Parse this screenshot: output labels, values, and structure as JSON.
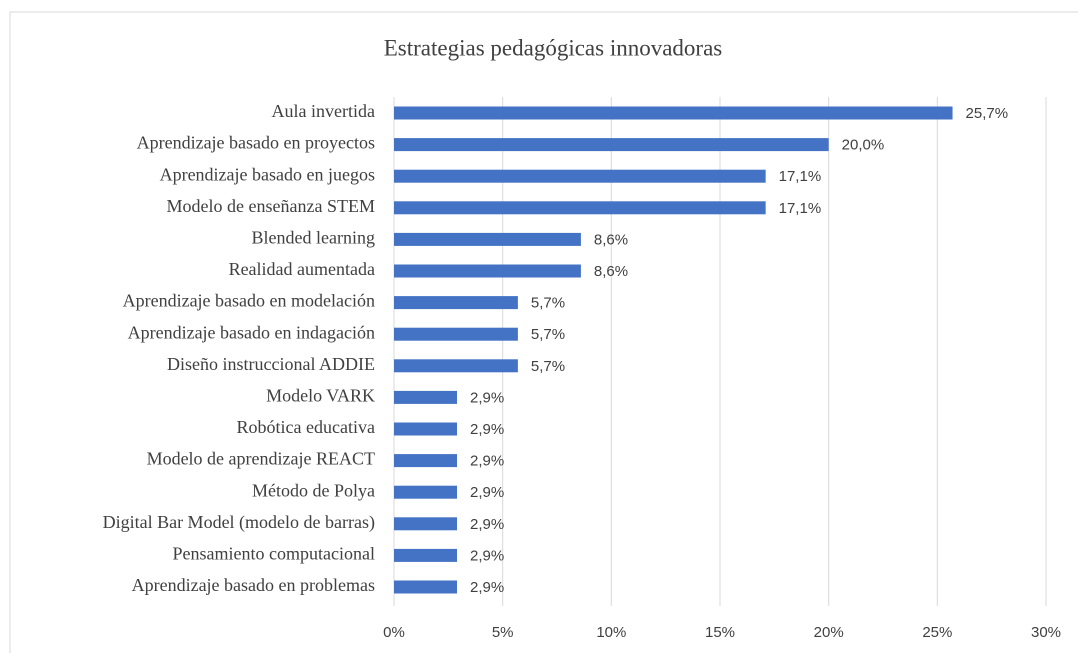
{
  "chart_data": {
    "type": "barh",
    "title": "Estrategias  pedagógicas  innovadoras",
    "categories": [
      "Aula invertida",
      "Aprendizaje basado en proyectos",
      "Aprendizaje basado en juegos",
      "Modelo de enseñanza STEM",
      "Blended learning",
      "Realidad aumentada",
      "Aprendizaje basado en modelación",
      "Aprendizaje basado en indagación",
      "Diseño instruccional ADDIE",
      "Modelo VARK",
      "Robótica educativa",
      "Modelo de aprendizaje REACT",
      "Método de Polya",
      "Digital Bar Model (modelo de barras)",
      "Pensamiento computacional",
      "Aprendizaje basado en problemas"
    ],
    "values": [
      25.7,
      20.0,
      17.1,
      17.1,
      8.6,
      8.6,
      5.7,
      5.7,
      5.7,
      2.9,
      2.9,
      2.9,
      2.9,
      2.9,
      2.9,
      2.9
    ],
    "value_labels": [
      "25,7%",
      "20,0%",
      "17,1%",
      "17,1%",
      "8,6%",
      "8,6%",
      "5,7%",
      "5,7%",
      "5,7%",
      "2,9%",
      "2,9%",
      "2,9%",
      "2,9%",
      "2,9%",
      "2,9%",
      "2,9%"
    ],
    "color": "#4472c4",
    "xlim": [
      0,
      30
    ],
    "xticks": [
      {
        "value": 0,
        "label": "0%"
      },
      {
        "value": 5,
        "label": "5%"
      },
      {
        "value": 10,
        "label": "10%"
      },
      {
        "value": 15,
        "label": "15%"
      },
      {
        "value": 20,
        "label": "20%"
      },
      {
        "value": 25,
        "label": "25%"
      },
      {
        "value": 30,
        "label": "30%"
      }
    ],
    "grid": true
  }
}
